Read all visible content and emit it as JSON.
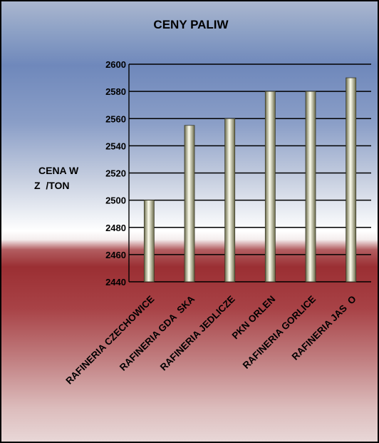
{
  "chart_data": {
    "type": "bar",
    "title": "CENY PALIW",
    "ylabel_lines": [
      "CENA W",
      "Z  /TON"
    ],
    "xlabel": "",
    "categories": [
      "RAFINERIA CZECHOWICE",
      "RAFINERIA GDA  SKA",
      "RAFINERIA JEDLICZE",
      "PKN ORLEN",
      "RAFINERIA GORLICE",
      "RAFINERIA JAS  O"
    ],
    "values": [
      2500,
      2555,
      2560,
      2580,
      2580,
      2590
    ],
    "ylim": [
      2440,
      2600
    ],
    "yticks": [
      2440,
      2460,
      2480,
      2500,
      2520,
      2540,
      2560,
      2580,
      2600
    ],
    "grid": true,
    "legend": "none",
    "colors": {
      "bar_light": "#fffff0",
      "bar_dark": "#6b6b4a",
      "gridline": "#000000"
    }
  }
}
